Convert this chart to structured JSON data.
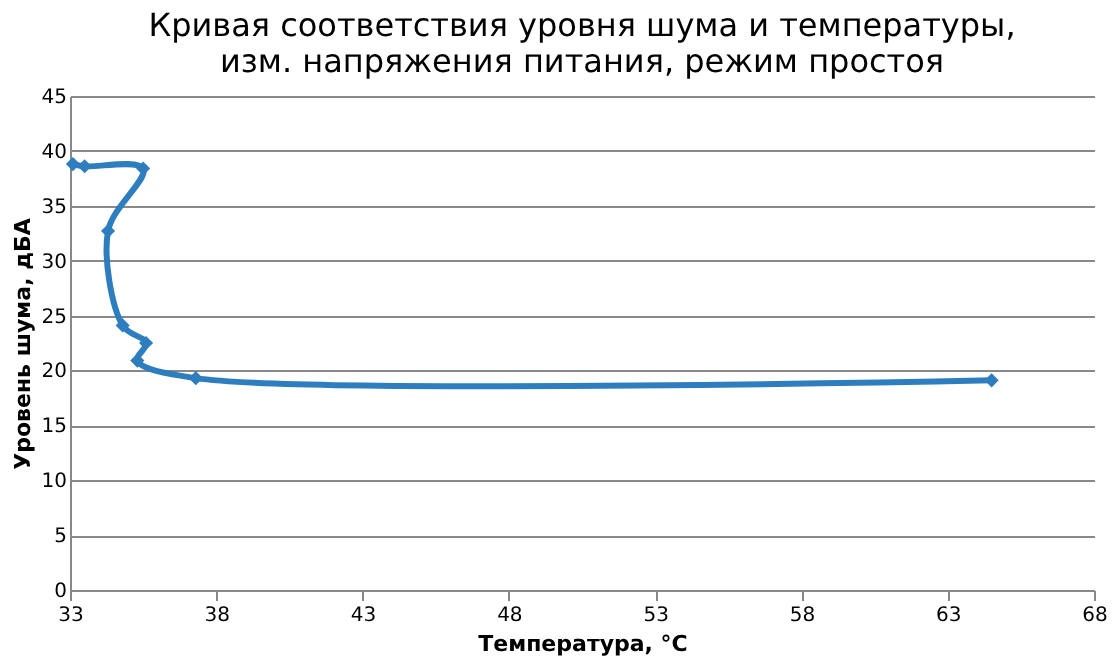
{
  "chart_data": {
    "type": "line",
    "title": "Кривая соответствия уровня шума и температуры, изм. напряжения питания, режим простоя",
    "xlabel": "Температура, °C",
    "ylabel": "Уровень шума, дБА",
    "series": [
      {
        "color": "#2e7ebf",
        "x": [
          33.1,
          33.5,
          35.5,
          34.3,
          34.8,
          35.6,
          35.3,
          37.3,
          64.5
        ],
        "values": [
          38.8,
          38.6,
          38.4,
          32.7,
          24.1,
          22.5,
          20.9,
          19.3,
          19.1
        ]
      }
    ],
    "xlim": [
      33,
      68
    ],
    "xticks": [
      33,
      38,
      43,
      48,
      53,
      58,
      63,
      68
    ],
    "ylim": [
      0,
      45
    ],
    "yticks": [
      0,
      5,
      10,
      15,
      20,
      25,
      30,
      35,
      40,
      45
    ],
    "grid": "y",
    "marker": "diamond",
    "line_style": "solid"
  }
}
